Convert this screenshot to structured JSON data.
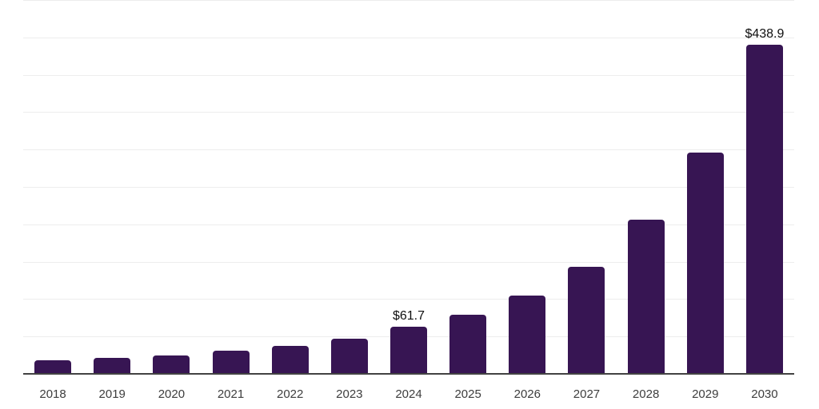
{
  "chart_data": {
    "type": "bar",
    "title": "",
    "xlabel": "",
    "ylabel": "",
    "categories": [
      "2018",
      "2019",
      "2020",
      "2021",
      "2022",
      "2023",
      "2024",
      "2025",
      "2026",
      "2027",
      "2028",
      "2029",
      "2030"
    ],
    "values": [
      17.5,
      20,
      24,
      29.5,
      36,
      45.5,
      61.7,
      78,
      104,
      142,
      205,
      295,
      438.9
    ],
    "data_labels": [
      {
        "index": 6,
        "text": "$61.7"
      },
      {
        "index": 12,
        "text": "$438.9"
      }
    ],
    "ylim": [
      0,
      500
    ],
    "gridline_interval": 50,
    "grid": "horizontal-only",
    "legend": "none",
    "colors": {
      "bar": "#371553",
      "gridline": "#ededed",
      "axis_line": "#424242",
      "tick_label": "#3d3d3d",
      "data_label": "#0f0f0f",
      "background": "#ffffff"
    }
  }
}
